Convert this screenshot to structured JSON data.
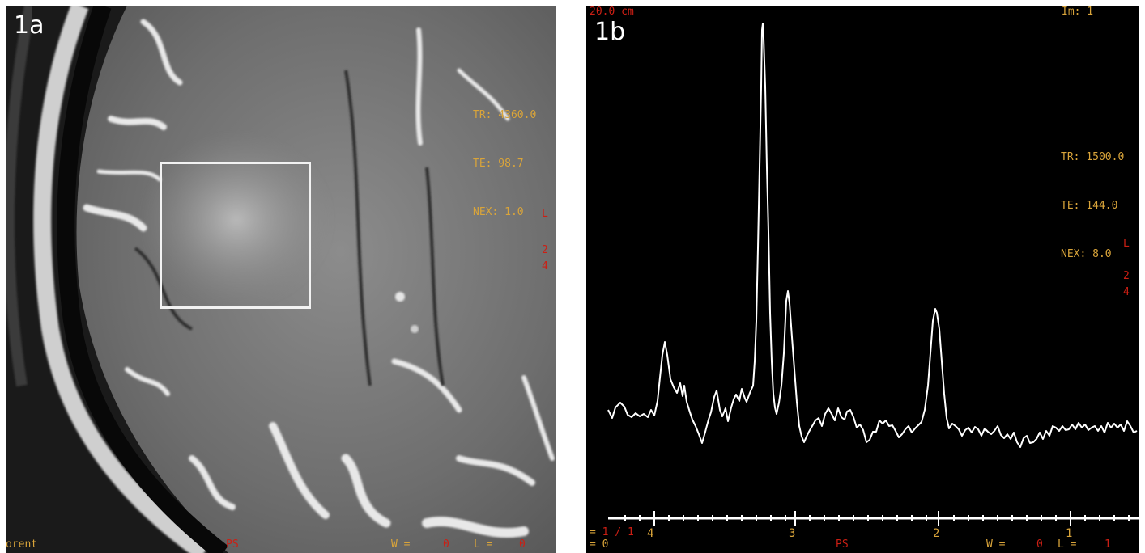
{
  "panel_a": {
    "label": "1a",
    "params": [
      "TR: 4360.0",
      "TE: 98.7",
      "NEX: 1.0"
    ],
    "orientation": [
      "L",
      "2",
      "4"
    ],
    "bottom_left": "orent",
    "bottom_ps": "PS",
    "bottom_w": "W =",
    "bottom_w_val": "0",
    "bottom_l": "L =",
    "bottom_l_val": "0"
  },
  "panel_b": {
    "label": "1b",
    "scale": "20.0 cm",
    "image_number": "Im: 1",
    "params": [
      "TR: 1500.0",
      "TE: 144.0",
      "NEX: 8.0"
    ],
    "orientation": [
      "L",
      "2",
      "4"
    ],
    "page_prefix": "= ",
    "page": "1 / 1",
    "bottom_eq": "= 0",
    "bottom_ps": "PS",
    "bottom_w": "W =",
    "bottom_w_val": "0",
    "bottom_l": "L =",
    "bottom_l_val": "1",
    "axis_ticks": [
      "4",
      "3",
      "2",
      "1"
    ],
    "colors": {
      "trace": "#ffffff",
      "overlay_yellow": "#d9a43a",
      "overlay_red": "#cc1f14"
    }
  }
}
